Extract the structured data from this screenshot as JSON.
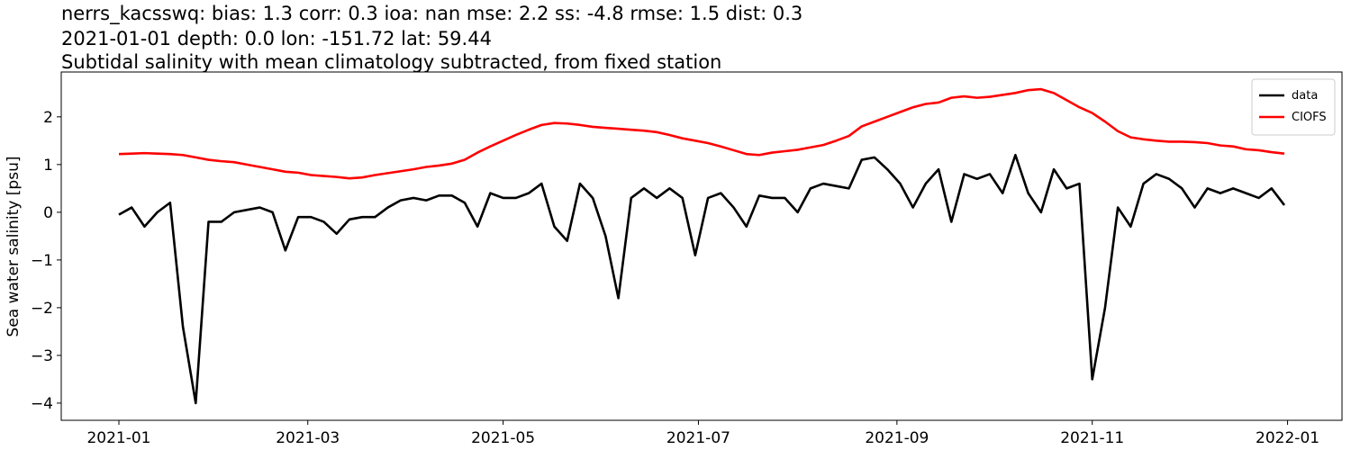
{
  "chart_data": {
    "type": "line",
    "title": [
      "nerrs_kacsswq: bias: 1.3  corr: 0.3  ioa: nan  mse: 2.2  ss: -4.8  rmse: 1.5  dist: 0.3",
      "2021-01-01 depth: 0.0 lon: -151.72 lat: 59.44",
      "Subtidal salinity with mean climatology subtracted, from fixed station"
    ],
    "ylabel": "Sea water salinity [psu]",
    "x": [
      "2021-01-01",
      "2021-01-05",
      "2021-01-09",
      "2021-01-13",
      "2021-01-17",
      "2021-01-21",
      "2021-01-25",
      "2021-01-29",
      "2021-02-02",
      "2021-02-06",
      "2021-02-10",
      "2021-02-14",
      "2021-02-18",
      "2021-02-22",
      "2021-02-26",
      "2021-03-02",
      "2021-03-06",
      "2021-03-10",
      "2021-03-14",
      "2021-03-18",
      "2021-03-22",
      "2021-03-26",
      "2021-03-30",
      "2021-04-03",
      "2021-04-07",
      "2021-04-11",
      "2021-04-15",
      "2021-04-19",
      "2021-04-23",
      "2021-04-27",
      "2021-05-01",
      "2021-05-05",
      "2021-05-09",
      "2021-05-13",
      "2021-05-17",
      "2021-05-21",
      "2021-05-25",
      "2021-05-29",
      "2021-06-02",
      "2021-06-06",
      "2021-06-10",
      "2021-06-14",
      "2021-06-18",
      "2021-06-22",
      "2021-06-26",
      "2021-06-30",
      "2021-07-04",
      "2021-07-08",
      "2021-07-12",
      "2021-07-16",
      "2021-07-20",
      "2021-07-24",
      "2021-07-28",
      "2021-08-01",
      "2021-08-05",
      "2021-08-09",
      "2021-08-13",
      "2021-08-17",
      "2021-08-21",
      "2021-08-25",
      "2021-08-29",
      "2021-09-02",
      "2021-09-06",
      "2021-09-10",
      "2021-09-14",
      "2021-09-18",
      "2021-09-22",
      "2021-09-26",
      "2021-09-30",
      "2021-10-04",
      "2021-10-08",
      "2021-10-12",
      "2021-10-16",
      "2021-10-20",
      "2021-10-24",
      "2021-10-28",
      "2021-11-01",
      "2021-11-05",
      "2021-11-09",
      "2021-11-13",
      "2021-11-17",
      "2021-11-21",
      "2021-11-25",
      "2021-11-29",
      "2021-12-03",
      "2021-12-07",
      "2021-12-11",
      "2021-12-15",
      "2021-12-19",
      "2021-12-23",
      "2021-12-27",
      "2021-12-31"
    ],
    "series": [
      {
        "name": "data",
        "color": "#000000",
        "values": [
          -0.05,
          0.1,
          -0.3,
          0.0,
          0.2,
          -2.4,
          -4.0,
          -0.2,
          -0.2,
          0.0,
          0.05,
          0.1,
          0.0,
          -0.8,
          -0.1,
          -0.1,
          -0.2,
          -0.45,
          -0.15,
          -0.1,
          -0.1,
          0.1,
          0.25,
          0.3,
          0.25,
          0.35,
          0.35,
          0.2,
          -0.3,
          0.4,
          0.3,
          0.3,
          0.4,
          0.6,
          -0.3,
          -0.6,
          0.6,
          0.3,
          -0.5,
          -1.8,
          0.3,
          0.5,
          0.3,
          0.5,
          0.3,
          -0.9,
          0.3,
          0.4,
          0.1,
          -0.3,
          0.35,
          0.3,
          0.3,
          0.0,
          0.5,
          0.6,
          0.55,
          0.5,
          1.1,
          1.15,
          0.9,
          0.6,
          0.1,
          0.6,
          0.9,
          -0.2,
          0.8,
          0.7,
          0.8,
          0.4,
          1.2,
          0.4,
          0.0,
          0.9,
          0.5,
          0.6,
          -3.5,
          -2.0,
          0.1,
          -0.3,
          0.6,
          0.8,
          0.7,
          0.5,
          0.1,
          0.5,
          0.4,
          0.5,
          0.4,
          0.3,
          0.5,
          0.15
        ]
      },
      {
        "name": "CIOFS",
        "color": "#ff0000",
        "values": [
          1.22,
          1.23,
          1.24,
          1.23,
          1.22,
          1.2,
          1.15,
          1.1,
          1.07,
          1.05,
          1.0,
          0.95,
          0.9,
          0.85,
          0.83,
          0.78,
          0.76,
          0.74,
          0.71,
          0.73,
          0.78,
          0.82,
          0.86,
          0.9,
          0.95,
          0.98,
          1.02,
          1.1,
          1.25,
          1.38,
          1.5,
          1.62,
          1.73,
          1.83,
          1.87,
          1.86,
          1.83,
          1.79,
          1.77,
          1.75,
          1.73,
          1.71,
          1.68,
          1.62,
          1.55,
          1.5,
          1.45,
          1.38,
          1.3,
          1.22,
          1.2,
          1.25,
          1.28,
          1.31,
          1.36,
          1.41,
          1.5,
          1.6,
          1.8,
          1.9,
          2.0,
          2.1,
          2.2,
          2.27,
          2.3,
          2.4,
          2.43,
          2.4,
          2.42,
          2.46,
          2.5,
          2.56,
          2.58,
          2.5,
          2.35,
          2.2,
          2.08,
          1.9,
          1.7,
          1.57,
          1.53,
          1.5,
          1.48,
          1.48,
          1.47,
          1.45,
          1.4,
          1.38,
          1.32,
          1.3,
          1.26,
          1.23
        ]
      }
    ],
    "xlim": [
      "2020-12-14",
      "2022-01-18"
    ],
    "xticks": [
      {
        "value": "2021-01-01",
        "label": "2021-01"
      },
      {
        "value": "2021-03-01",
        "label": "2021-03"
      },
      {
        "value": "2021-05-01",
        "label": "2021-05"
      },
      {
        "value": "2021-07-01",
        "label": "2021-07"
      },
      {
        "value": "2021-09-01",
        "label": "2021-09"
      },
      {
        "value": "2021-11-01",
        "label": "2021-11"
      },
      {
        "value": "2022-01-01",
        "label": "2022-01"
      }
    ],
    "ylim": [
      -4.36,
      2.94
    ],
    "yticks": [
      {
        "value": -4,
        "label": "−4"
      },
      {
        "value": -3,
        "label": "−3"
      },
      {
        "value": -2,
        "label": "−2"
      },
      {
        "value": -1,
        "label": "−1"
      },
      0,
      1,
      2
    ],
    "legend": "upper right"
  }
}
